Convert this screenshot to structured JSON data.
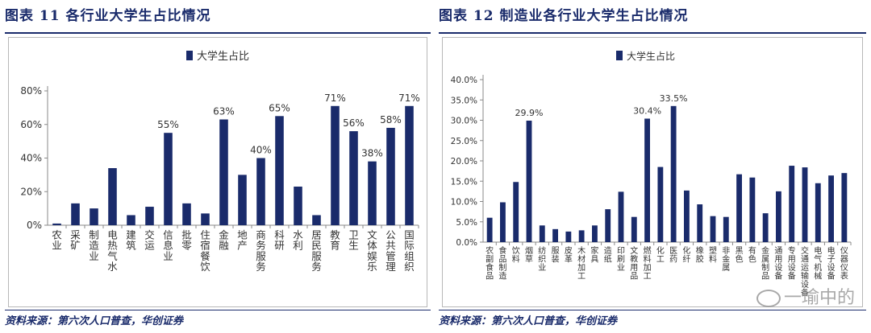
{
  "left": {
    "title": "图表 11   各行业大学生占比情况",
    "source": "资料来源：第六次人口普查，华创证券",
    "chart_data": {
      "type": "bar",
      "legend": "大学生占比",
      "legend_position": "top-center",
      "ylim": [
        0,
        80
      ],
      "yticks": [
        "0%",
        "20%",
        "40%",
        "60%",
        "80%"
      ],
      "ytick_values": [
        0,
        20,
        40,
        60,
        80
      ],
      "categories": [
        "农业",
        "采矿",
        "制造业",
        "电热气水",
        "建筑",
        "交运",
        "信息业",
        "批零",
        "住宿餐饮",
        "金融",
        "地产",
        "商务服务",
        "科研",
        "水利",
        "居民服务",
        "教育",
        "卫生",
        "文体娱乐",
        "公共管理",
        "国际组织"
      ],
      "values": [
        1,
        13,
        10,
        34,
        6,
        11,
        55,
        13,
        7,
        63,
        30,
        40,
        65,
        23,
        6,
        71,
        56,
        38,
        58,
        71
      ],
      "data_labels": [
        "",
        "",
        "",
        "",
        "",
        "",
        "55%",
        "",
        "",
        "63%",
        "",
        "40%",
        "65%",
        "",
        "",
        "71%",
        "56%",
        "38%",
        "58%",
        "71%"
      ],
      "bar_color": "#1a2b6b"
    }
  },
  "right": {
    "title": "图表 12   制造业各行业大学生占比情况",
    "source": "资料来源：第六次人口普查，华创证券",
    "chart_data": {
      "type": "bar",
      "legend": "大学生占比",
      "legend_position": "top-center",
      "ylim": [
        0,
        40
      ],
      "yticks": [
        "0.0%",
        "5.0%",
        "10.0%",
        "15.0%",
        "20.0%",
        "25.0%",
        "30.0%",
        "35.0%",
        "40.0%"
      ],
      "ytick_values": [
        0,
        5,
        10,
        15,
        20,
        25,
        30,
        35,
        40
      ],
      "categories": [
        "农副食品",
        "食品制造",
        "饮料",
        "烟草",
        "纺织业",
        "服装",
        "皮革",
        "木材加工",
        "家具",
        "造纸",
        "印刷业",
        "文教用品",
        "燃料加工",
        "化工",
        "医药",
        "化纤",
        "橡胶",
        "塑料",
        "非金属",
        "黑色",
        "有色",
        "金属制品",
        "通用设备",
        "专用设备",
        "交通运输设备",
        "电气机械",
        "电子设备",
        "仪器仪表"
      ],
      "values": [
        6.0,
        9.8,
        14.8,
        29.9,
        4.1,
        3.2,
        2.6,
        2.9,
        4.1,
        8.1,
        12.4,
        6.2,
        30.4,
        18.5,
        33.5,
        12.7,
        9.3,
        6.4,
        6.2,
        16.7,
        15.9,
        7.1,
        12.5,
        18.8,
        18.4,
        14.5,
        16.4,
        17.0
      ],
      "data_labels": [
        "",
        "",
        "",
        "29.9%",
        "",
        "",
        "",
        "",
        "",
        "",
        "",
        "",
        "30.4%",
        "",
        "33.5%",
        "",
        "",
        "",
        "",
        "",
        "",
        "",
        "",
        "",
        "",
        "",
        "",
        ""
      ],
      "bar_color": "#1a2b6b"
    }
  },
  "watermark": "一瑜中的"
}
